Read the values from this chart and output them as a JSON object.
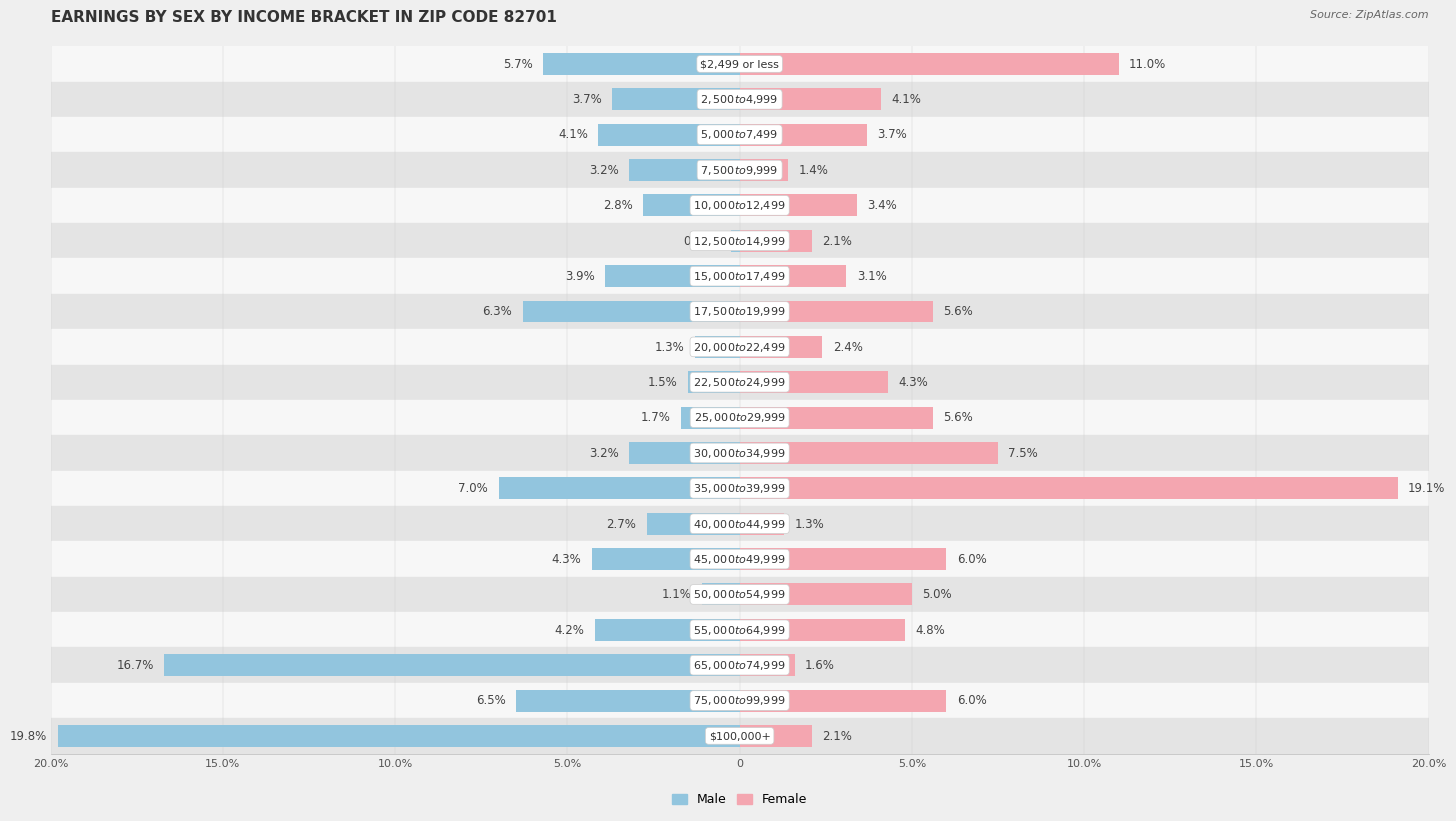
{
  "title": "EARNINGS BY SEX BY INCOME BRACKET IN ZIP CODE 82701",
  "source": "Source: ZipAtlas.com",
  "categories": [
    "$2,499 or less",
    "$2,500 to $4,999",
    "$5,000 to $7,499",
    "$7,500 to $9,999",
    "$10,000 to $12,499",
    "$12,500 to $14,999",
    "$15,000 to $17,499",
    "$17,500 to $19,999",
    "$20,000 to $22,499",
    "$22,500 to $24,999",
    "$25,000 to $29,999",
    "$30,000 to $34,999",
    "$35,000 to $39,999",
    "$40,000 to $44,999",
    "$45,000 to $49,999",
    "$50,000 to $54,999",
    "$55,000 to $64,999",
    "$65,000 to $74,999",
    "$75,000 to $99,999",
    "$100,000+"
  ],
  "male_values": [
    5.7,
    3.7,
    4.1,
    3.2,
    2.8,
    0.25,
    3.9,
    6.3,
    1.3,
    1.5,
    1.7,
    3.2,
    7.0,
    2.7,
    4.3,
    1.1,
    4.2,
    16.7,
    6.5,
    19.8
  ],
  "female_values": [
    11.0,
    4.1,
    3.7,
    1.4,
    3.4,
    2.1,
    3.1,
    5.6,
    2.4,
    4.3,
    5.6,
    7.5,
    19.1,
    1.3,
    6.0,
    5.0,
    4.8,
    1.6,
    6.0,
    2.1
  ],
  "male_color": "#92c5de",
  "female_color": "#f4a6b0",
  "background_color": "#efefef",
  "row_bg_light": "#f7f7f7",
  "row_bg_dark": "#e4e4e4",
  "axis_max": 20.0,
  "bar_height": 0.62,
  "title_fontsize": 11,
  "label_fontsize": 8.5,
  "category_fontsize": 8.0,
  "source_fontsize": 8,
  "tick_fontsize": 8
}
